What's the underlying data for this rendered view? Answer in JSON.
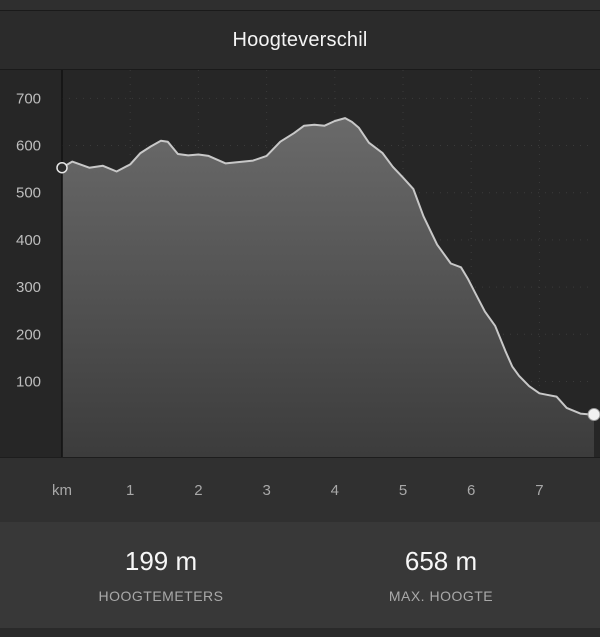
{
  "header": {
    "title": "Hoogteverschil"
  },
  "chart_data": {
    "type": "area",
    "xlabel": "km",
    "ylabel": "",
    "xlim": [
      0,
      7.8
    ],
    "ylim": [
      -60,
      760
    ],
    "y_ticks": [
      "700",
      "600",
      "500",
      "400",
      "300",
      "200",
      "100"
    ],
    "y_tick_values": [
      700,
      600,
      500,
      400,
      300,
      200,
      100
    ],
    "x_ticks": [
      "1",
      "2",
      "3",
      "4",
      "5",
      "6",
      "7"
    ],
    "x_tick_values": [
      1,
      2,
      3,
      4,
      5,
      6,
      7
    ],
    "grid": true,
    "series": [
      {
        "name": "",
        "x": [
          0.0,
          0.15,
          0.4,
          0.6,
          0.8,
          1.0,
          1.15,
          1.3,
          1.45,
          1.55,
          1.7,
          1.85,
          2.0,
          2.15,
          2.4,
          2.6,
          2.8,
          3.0,
          3.2,
          3.4,
          3.55,
          3.7,
          3.85,
          4.0,
          4.15,
          4.25,
          4.35,
          4.5,
          4.7,
          4.85,
          5.0,
          5.15,
          5.3,
          5.5,
          5.7,
          5.85,
          5.95,
          6.05,
          6.2,
          6.35,
          6.5,
          6.6,
          6.7,
          6.85,
          7.0,
          7.1,
          7.25,
          7.4,
          7.6,
          7.75
        ],
        "y": [
          553,
          566,
          553,
          557,
          545,
          560,
          584,
          598,
          610,
          608,
          582,
          579,
          581,
          578,
          562,
          565,
          568,
          578,
          608,
          626,
          642,
          644,
          642,
          652,
          658,
          650,
          638,
          606,
          584,
          555,
          532,
          508,
          450,
          390,
          350,
          342,
          318,
          290,
          248,
          218,
          165,
          132,
          112,
          90,
          75,
          72,
          68,
          44,
          32,
          30
        ]
      }
    ],
    "start_marker": {
      "x": 0.0,
      "y": 553
    },
    "end_marker": {
      "x": 7.8,
      "y": 30
    }
  },
  "stats": [
    {
      "value": "199 m",
      "label": "HOOGTEMETERS"
    },
    {
      "value": "658 m",
      "label": "MAX. HOOGTE"
    }
  ],
  "colors": {
    "line": "#c8c8c8",
    "fill_top": "#6a6a6a",
    "fill_bottom": "#3c3c3c",
    "grid": "#3b3b3b",
    "axis": "#111111",
    "ytick": "#bdbdbd"
  }
}
